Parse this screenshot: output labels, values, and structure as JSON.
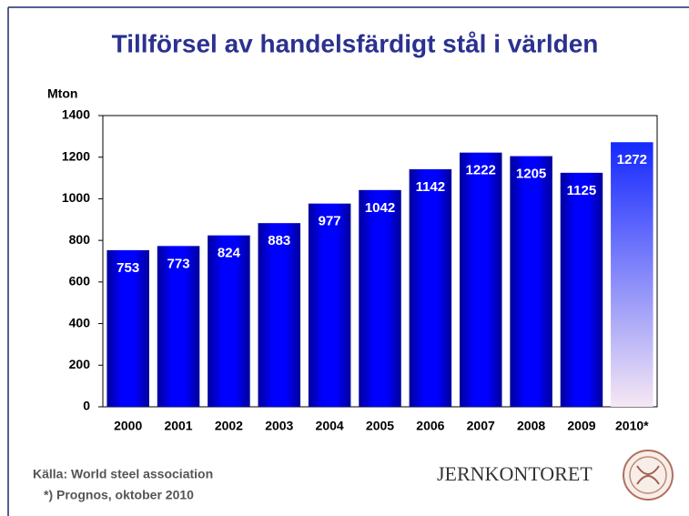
{
  "chart_data": {
    "type": "bar",
    "title": "Tillförsel av handelsfärdigt stål i världen",
    "y_label": "Mton",
    "categories": [
      "2000",
      "2001",
      "2002",
      "2003",
      "2004",
      "2005",
      "2006",
      "2007",
      "2008",
      "2009",
      "2010*"
    ],
    "values": [
      753,
      773,
      824,
      883,
      977,
      1042,
      1142,
      1222,
      1205,
      1125,
      1272
    ],
    "colors": [
      "#0000ff",
      "#0000ff",
      "#0000ff",
      "#0000ff",
      "#0000ff",
      "#0000ff",
      "#0000ff",
      "#0000ff",
      "#0000ff",
      "#0000ff",
      [
        "#1428ff",
        "#f6e8f4"
      ]
    ],
    "ylim": [
      0,
      1400
    ],
    "yticks": [
      0,
      200,
      400,
      600,
      800,
      1000,
      1200,
      1400
    ],
    "grid": false
  },
  "footer": {
    "source": "Källa: World steel association",
    "note": "*) Prognos, oktober 2010",
    "logo": "JERNKONTORET"
  }
}
